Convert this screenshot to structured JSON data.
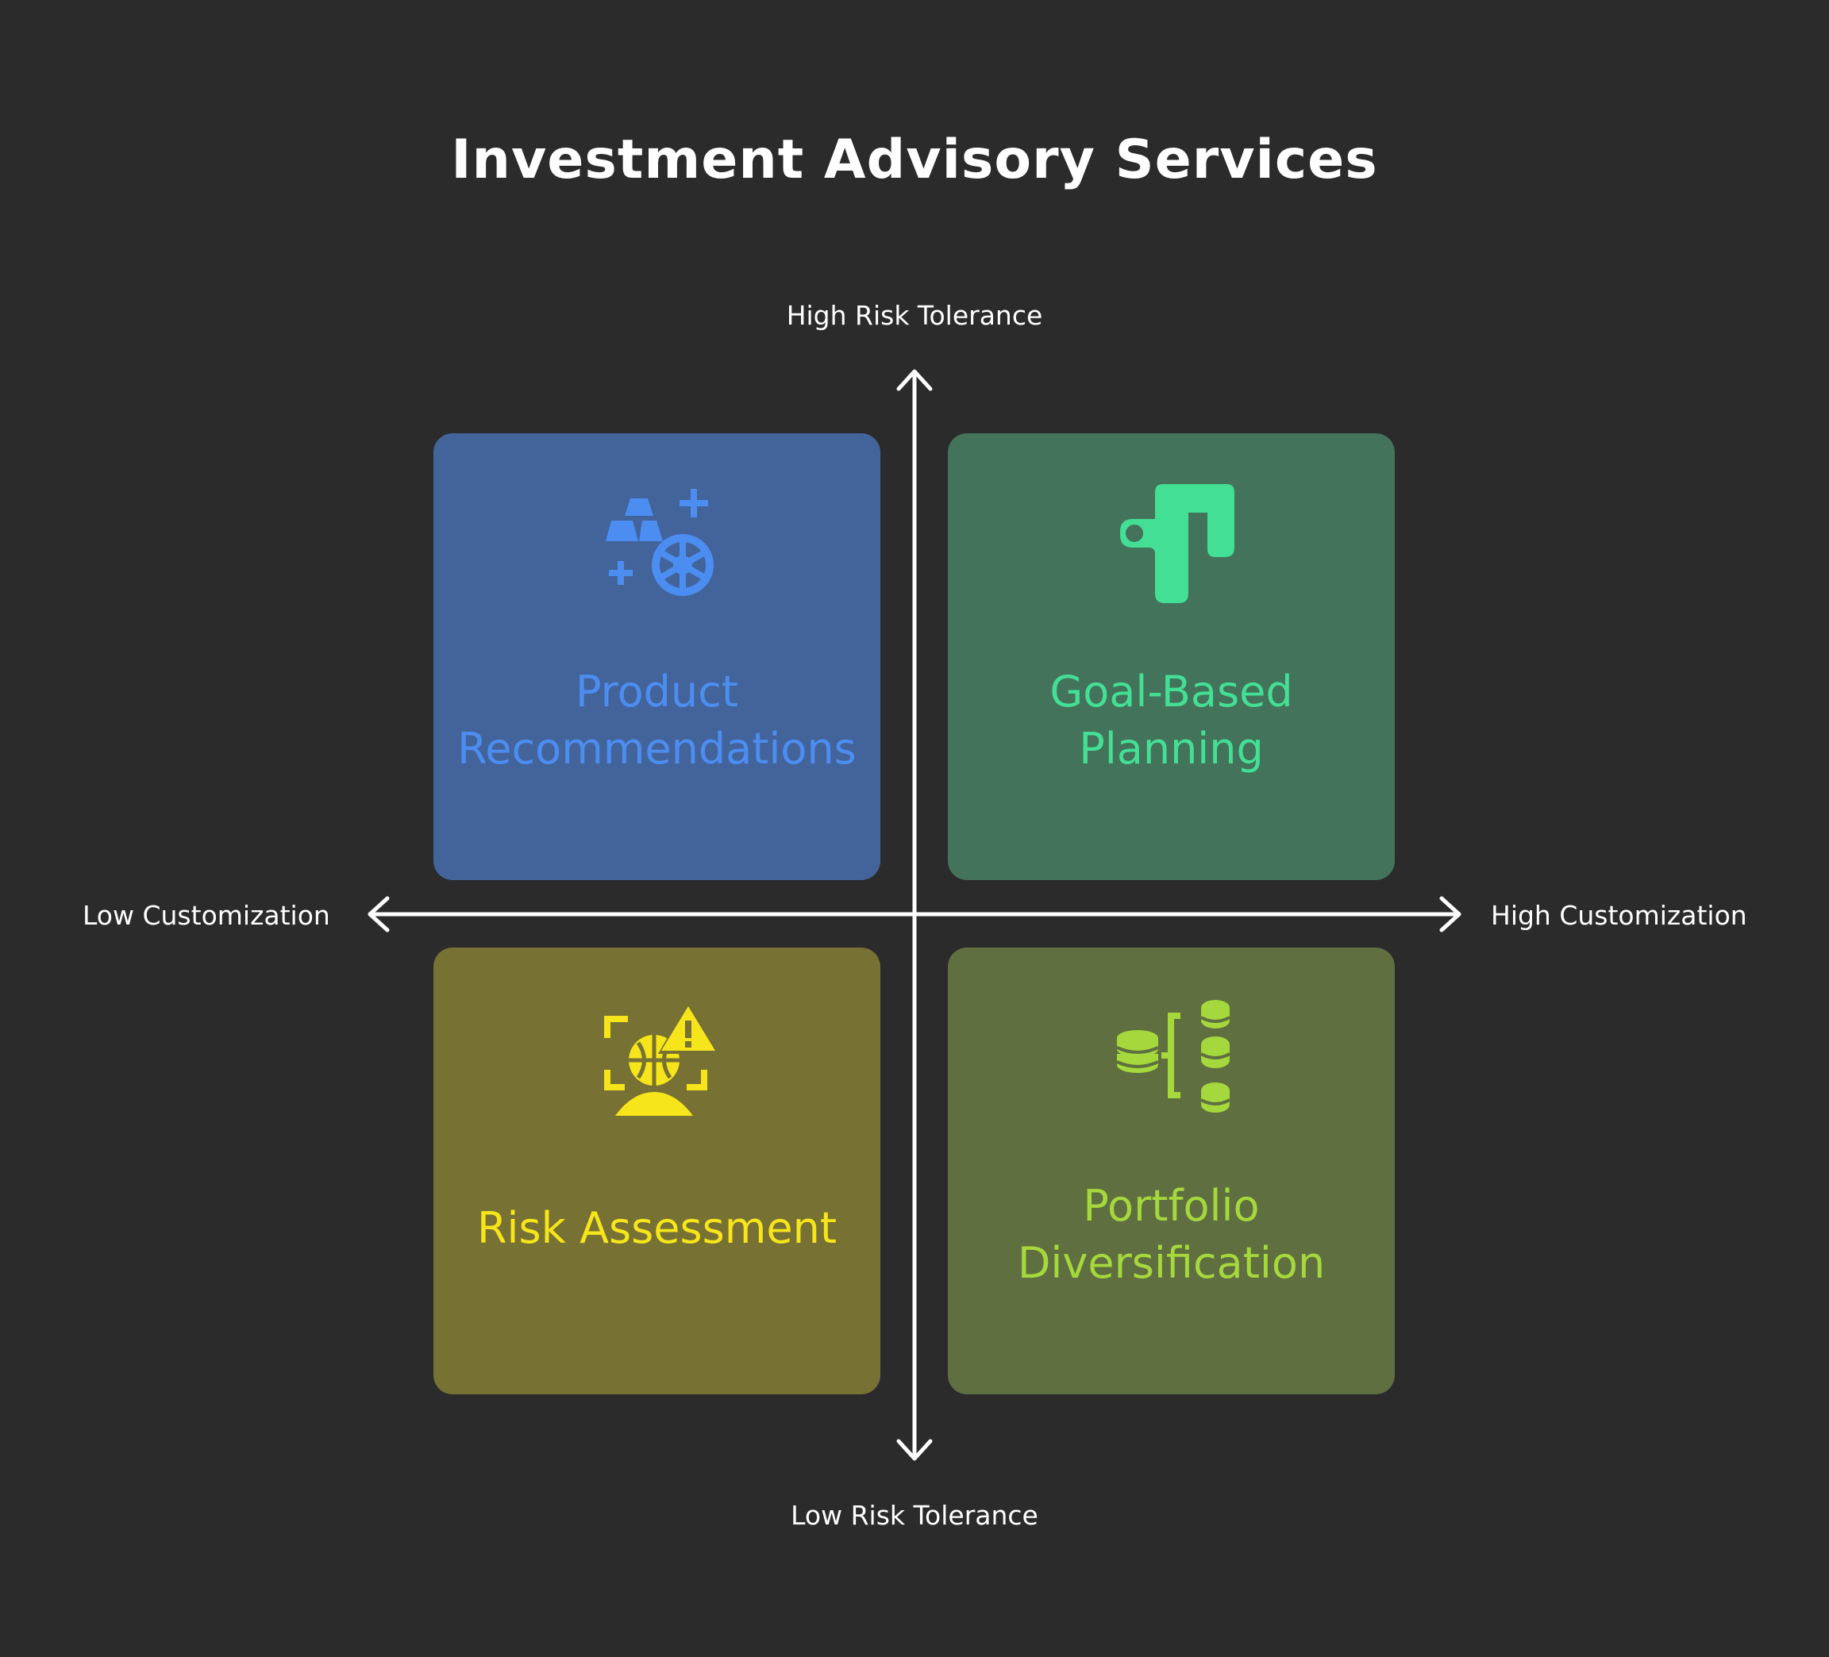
{
  "title": "Investment Advisory Services",
  "axes": {
    "top": "High Risk Tolerance",
    "bottom": "Low Risk Tolerance",
    "left": "Low Customization",
    "right": "High Customization"
  },
  "quadrants": {
    "top_left": {
      "lines": [
        "Product",
        "Recommendations"
      ],
      "icon": "gold-bars-wheel-icon",
      "bg": "#43649a",
      "fg": "#4c8df2"
    },
    "top_right": {
      "lines": [
        "Goal-Based",
        "Planning"
      ],
      "icon": "route-path-icon",
      "bg": "#43735a",
      "fg": "#43df94"
    },
    "bottom_left": {
      "lines": [
        "Risk Assessment"
      ],
      "icon": "risk-warning-icon",
      "bg": "#777133",
      "fg": "#f6e51b"
    },
    "bottom_right": {
      "lines": [
        "Portfolio",
        "Diversification"
      ],
      "icon": "coin-stacks-icon",
      "bg": "#5f6f40",
      "fg": "#a4d83c"
    }
  },
  "colors": {
    "background": "#2b2b2b",
    "text": "#ffffff",
    "axis": "#ffffff"
  }
}
